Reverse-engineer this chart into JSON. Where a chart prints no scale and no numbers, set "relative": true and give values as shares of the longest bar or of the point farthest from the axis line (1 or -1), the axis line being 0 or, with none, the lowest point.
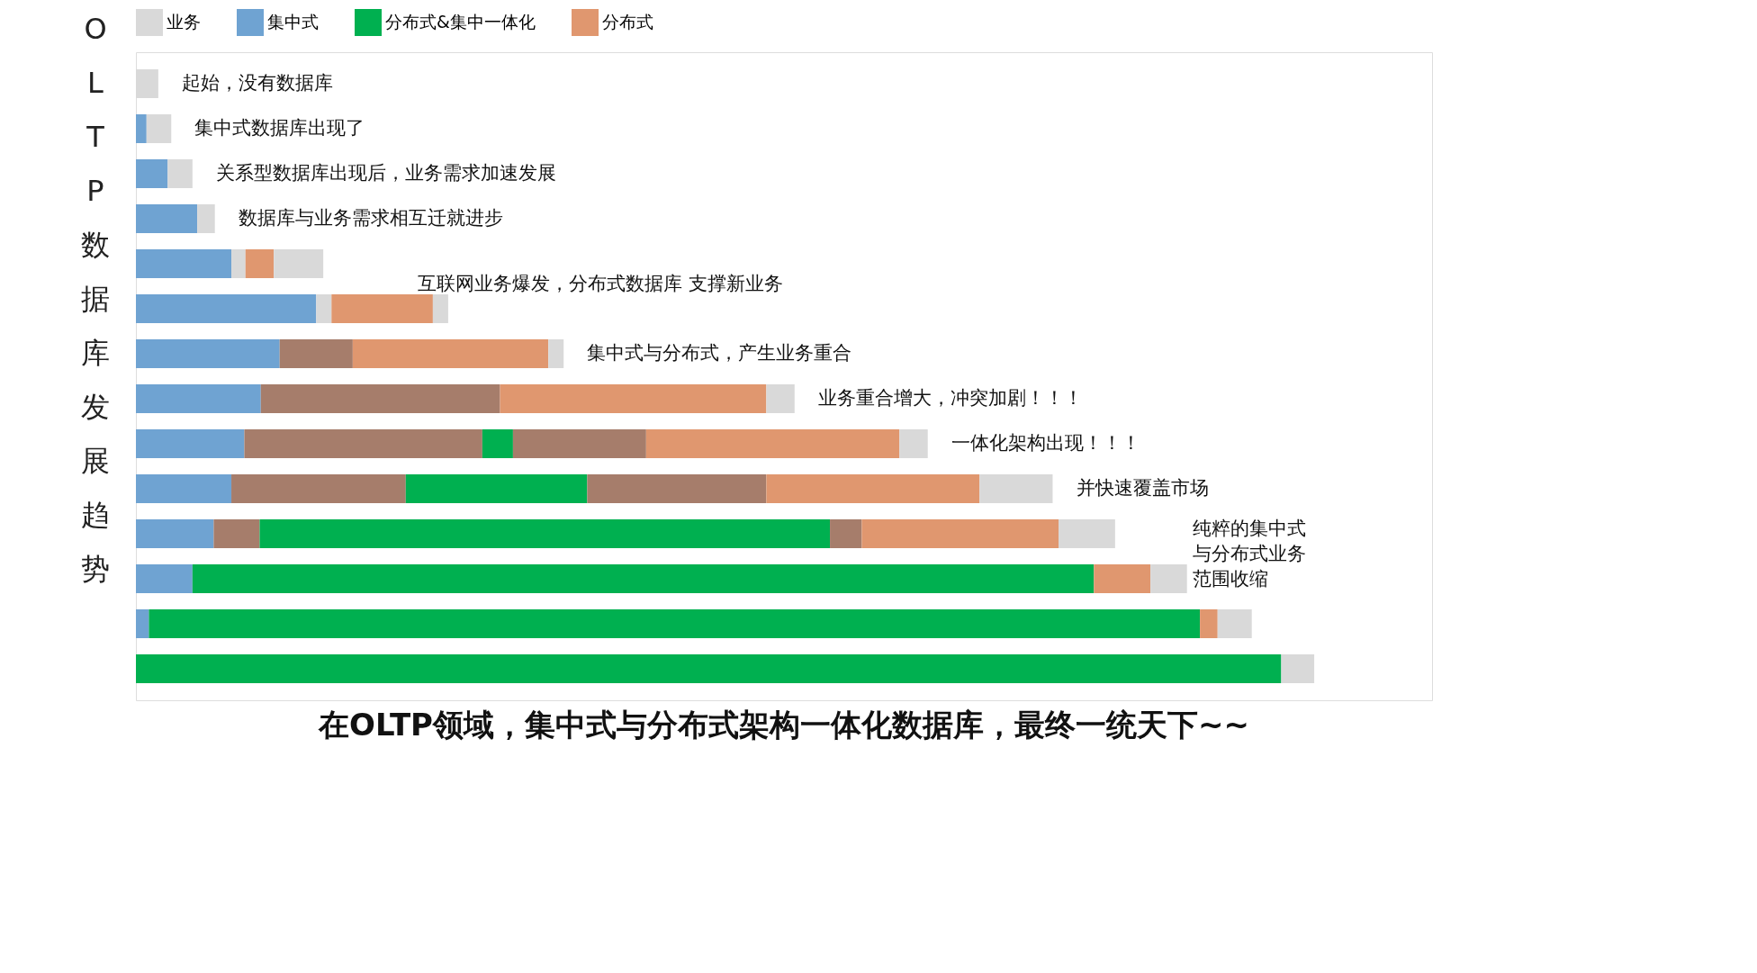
{
  "chart_data": {
    "type": "bar",
    "orientation": "horizontal",
    "stacked": true,
    "relative": true,
    "legend": "top left",
    "title": "在OLTP领域，集中式与分布式架构一体化数据库，最终一统天下~~",
    "ylabel": "OLTP数据库发展趋势",
    "categories": [
      null,
      null,
      null,
      null,
      null,
      null,
      null,
      null,
      null,
      null,
      null,
      null,
      null,
      null
    ],
    "series": [
      {
        "name": "业务",
        "color": "#d9d9d9",
        "values": [
          0.019,
          null,
          null,
          null,
          null,
          null,
          null,
          null,
          null,
          null,
          null,
          null,
          null,
          null
        ]
      },
      {
        "name": "集中式",
        "color": "#6fa3d2",
        "values": [
          null,
          0.009,
          0.027,
          0.052,
          0.081,
          0.153,
          0.122,
          0.106,
          0.092,
          0.081,
          0.066,
          0.048,
          0.011,
          null
        ]
      },
      {
        "color": "#a67d6b",
        "values": [
          null,
          null,
          null,
          null,
          null,
          null,
          0.062,
          0.203,
          0.202,
          0.148,
          0.039,
          null,
          null,
          null
        ]
      },
      {
        "name": "分布式&集中一体化",
        "color": "#00b050",
        "values": [
          null,
          null,
          null,
          null,
          null,
          null,
          null,
          null,
          0.026,
          0.154,
          0.484,
          0.765,
          0.892,
          0.972
        ]
      },
      {
        "color": "#a67d6b",
        "values": [
          null,
          null,
          null,
          null,
          null,
          null,
          null,
          null,
          0.113,
          0.152,
          0.027,
          null,
          null,
          null
        ]
      },
      {
        "color": "#d9d9d9",
        "values": [
          null,
          null,
          null,
          null,
          0.012,
          0.013,
          null,
          null,
          null,
          null,
          null,
          null,
          null,
          null
        ]
      },
      {
        "name": "分布式",
        "color": "#e0976f",
        "values": [
          null,
          null,
          null,
          null,
          0.024,
          0.086,
          0.166,
          0.226,
          0.215,
          0.181,
          0.167,
          0.048,
          0.015,
          null
        ]
      },
      {
        "color": "#d9d9d9",
        "values": [
          null,
          0.021,
          0.021,
          0.015,
          0.042,
          0.013,
          0.013,
          0.024,
          0.024,
          0.062,
          0.048,
          0.031,
          0.029,
          0.028
        ]
      }
    ],
    "annotations": [
      "起始，没有数据库",
      "集中式数据库出现了",
      "关系型数据库出现后，业务需求加速发展",
      "数据库与业务需求相互迁就进步",
      "互联网业务爆发，分布式数据库 支撑新业务",
      "集中式与分布式，产生业务重合",
      "业务重合增大，冲突加剧！！！",
      "一体化架构出现！！！",
      "并快速覆盖市场",
      "纯粹的集中式与分布式业务范围收缩"
    ]
  }
}
